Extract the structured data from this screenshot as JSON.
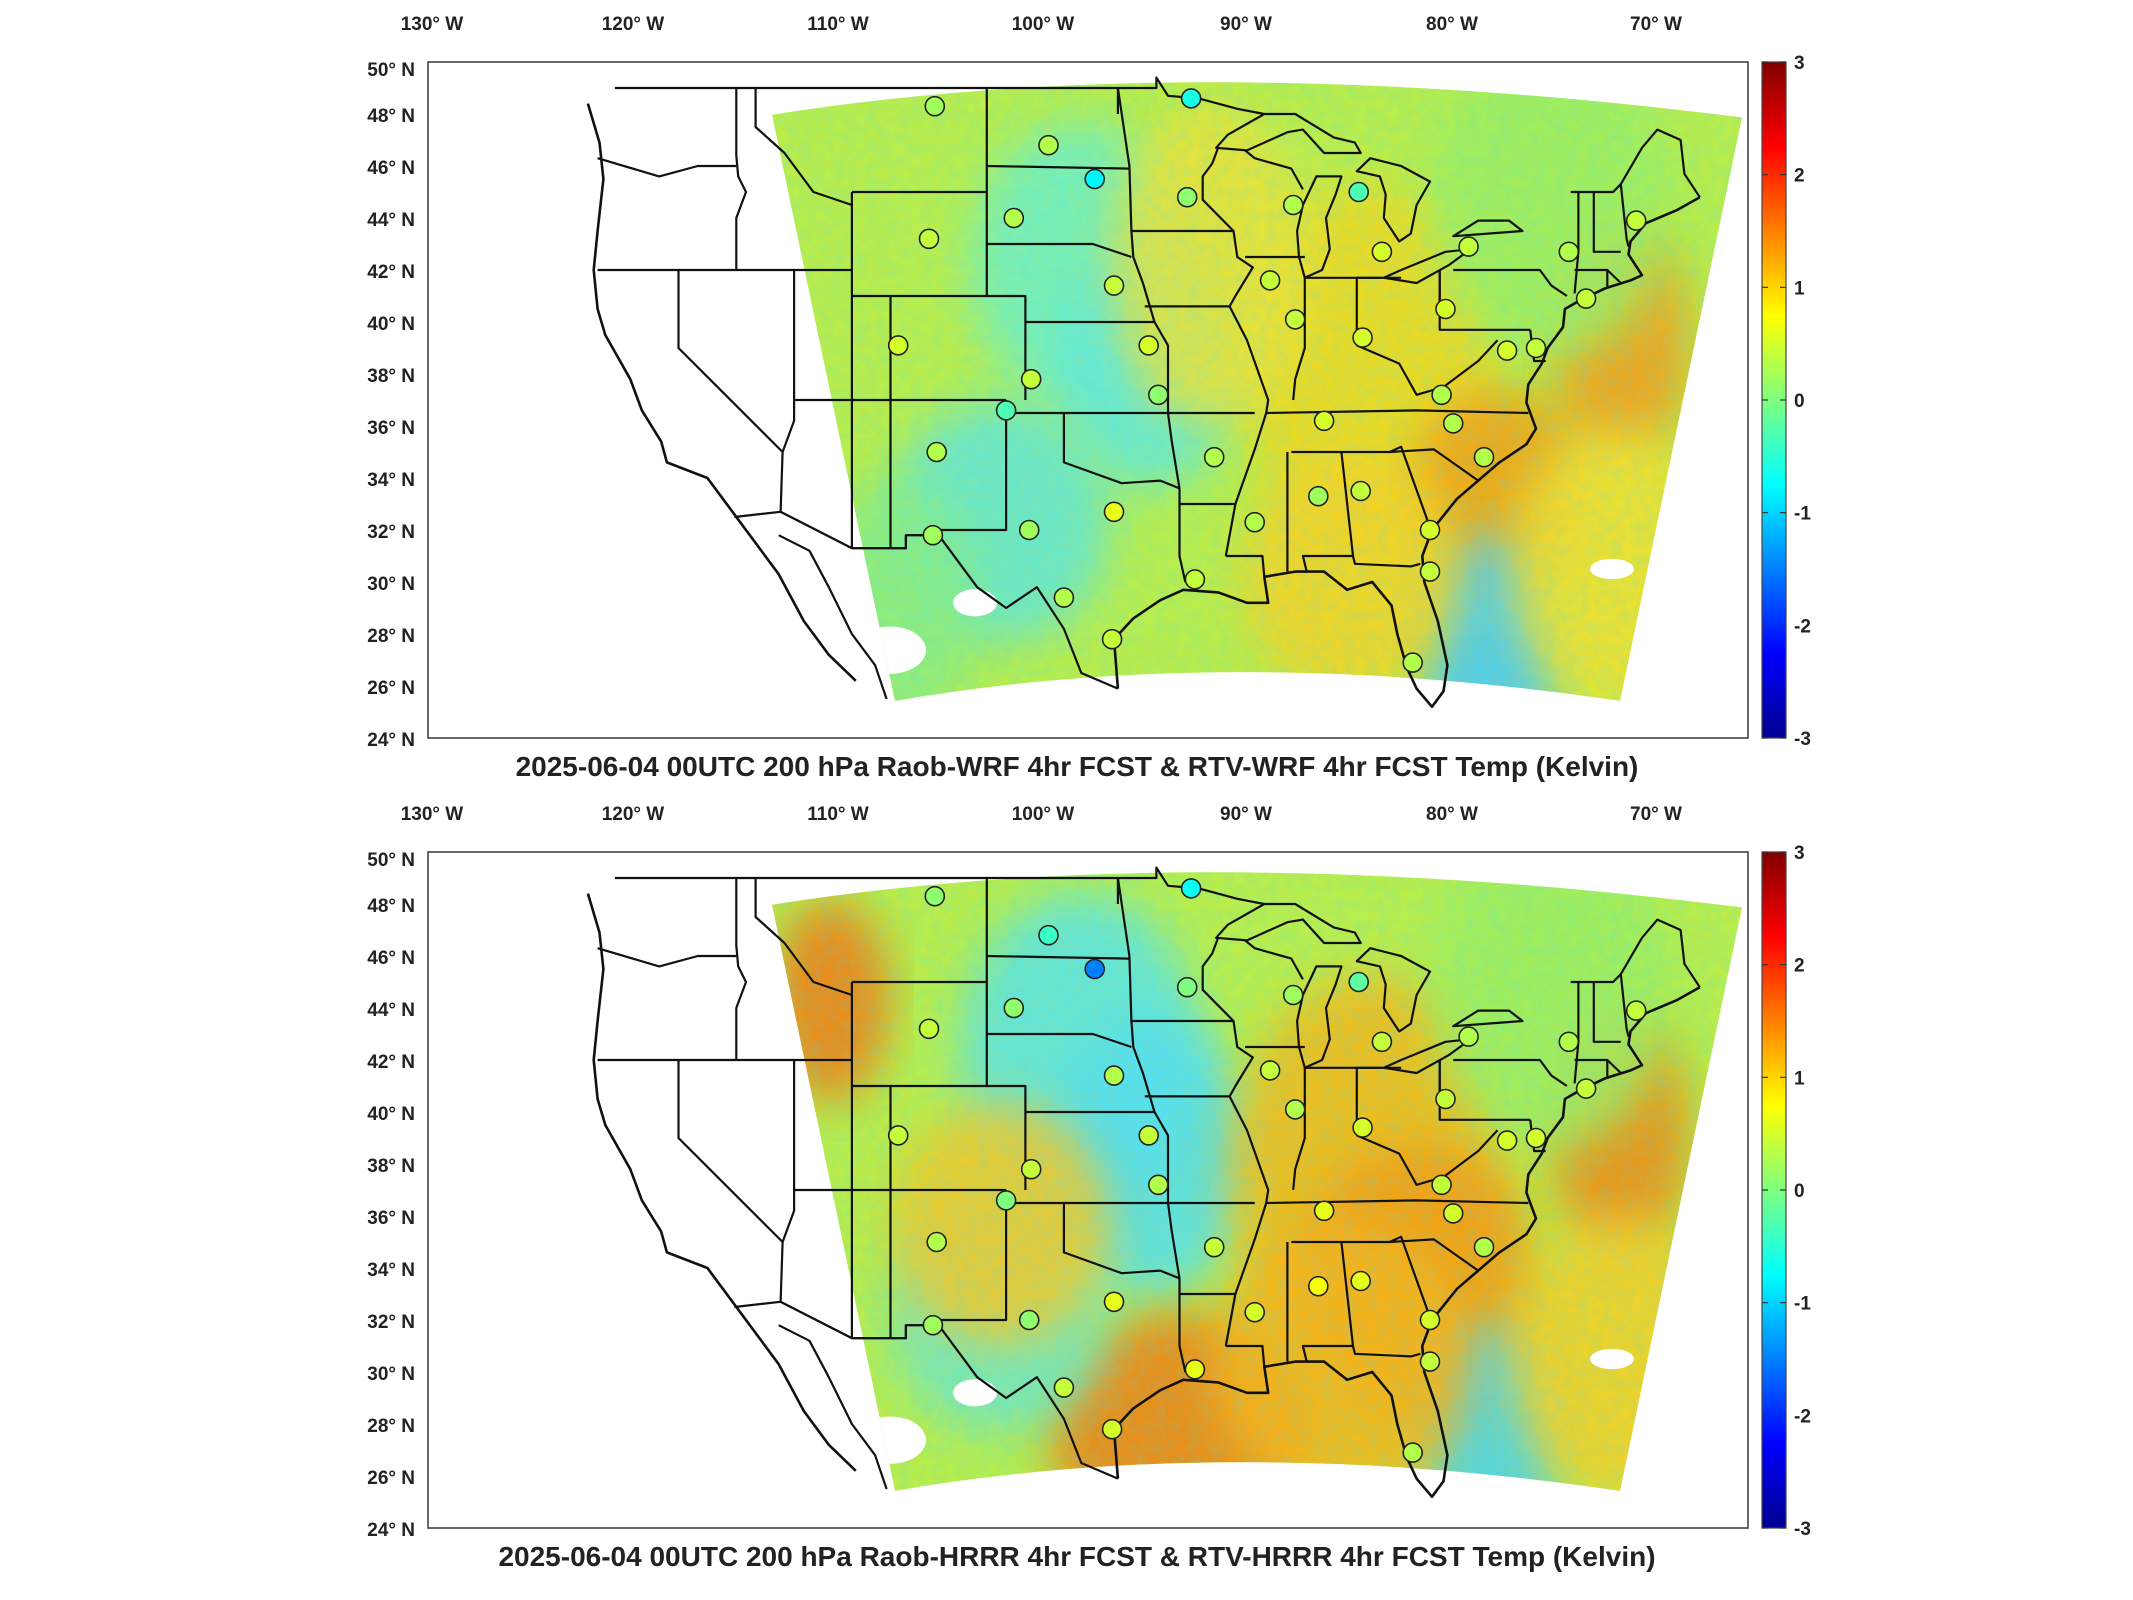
{
  "panels": [
    {
      "title": "2025-06-04 00UTC 200 hPa Raob-WRF 4hr FCST & RTV-WRF 4hr FCST Temp (Kelvin)",
      "stations": [
        {
          "lon": -106.7,
          "lat": 48.3,
          "v": 0.2
        },
        {
          "lon": -100.8,
          "lat": 46.8,
          "v": 0.3
        },
        {
          "lon": -98.4,
          "lat": 45.5,
          "v": -0.8
        },
        {
          "lon": -93.4,
          "lat": 48.6,
          "v": -0.6
        },
        {
          "lon": -93.6,
          "lat": 44.8,
          "v": 0.1
        },
        {
          "lon": -88.1,
          "lat": 44.5,
          "v": 0.3
        },
        {
          "lon": -84.7,
          "lat": 45.0,
          "v": -0.3
        },
        {
          "lon": -83.5,
          "lat": 42.7,
          "v": 0.5
        },
        {
          "lon": -79.0,
          "lat": 42.9,
          "v": 0.4
        },
        {
          "lon": -73.8,
          "lat": 42.7,
          "v": 0.3
        },
        {
          "lon": -70.3,
          "lat": 43.9,
          "v": 0.4
        },
        {
          "lon": -102.6,
          "lat": 44.0,
          "v": 0.3
        },
        {
          "lon": -107.0,
          "lat": 43.2,
          "v": 0.4
        },
        {
          "lon": -108.6,
          "lat": 39.1,
          "v": 0.5
        },
        {
          "lon": -106.6,
          "lat": 35.0,
          "v": 0.3
        },
        {
          "lon": -103.0,
          "lat": 36.6,
          "v": -0.3
        },
        {
          "lon": -101.7,
          "lat": 37.8,
          "v": 0.4
        },
        {
          "lon": -97.4,
          "lat": 41.4,
          "v": 0.4
        },
        {
          "lon": -95.6,
          "lat": 39.1,
          "v": 0.5
        },
        {
          "lon": -89.3,
          "lat": 41.6,
          "v": 0.4
        },
        {
          "lon": -88.0,
          "lat": 40.1,
          "v": 0.4
        },
        {
          "lon": -97.4,
          "lat": 32.7,
          "v": 0.6
        },
        {
          "lon": -101.8,
          "lat": 32.0,
          "v": 0.2
        },
        {
          "lon": -106.8,
          "lat": 31.8,
          "v": 0.2
        },
        {
          "lon": -100.0,
          "lat": 29.4,
          "v": 0.3
        },
        {
          "lon": -97.5,
          "lat": 27.8,
          "v": 0.4
        },
        {
          "lon": -93.2,
          "lat": 30.1,
          "v": 0.4
        },
        {
          "lon": -92.2,
          "lat": 34.8,
          "v": 0.3
        },
        {
          "lon": -95.1,
          "lat": 37.2,
          "v": 0.1
        },
        {
          "lon": -90.1,
          "lat": 32.3,
          "v": 0.3
        },
        {
          "lon": -86.8,
          "lat": 33.3,
          "v": 0.2
        },
        {
          "lon": -84.6,
          "lat": 33.5,
          "v": 0.4
        },
        {
          "lon": -86.5,
          "lat": 36.2,
          "v": 0.5
        },
        {
          "lon": -81.0,
          "lat": 32.0,
          "v": 0.5
        },
        {
          "lon": -78.2,
          "lat": 34.8,
          "v": 0.3
        },
        {
          "lon": -80.4,
          "lat": 37.2,
          "v": 0.3
        },
        {
          "lon": -80.2,
          "lat": 40.5,
          "v": 0.5
        },
        {
          "lon": -84.5,
          "lat": 39.4,
          "v": 0.5
        },
        {
          "lon": -81.0,
          "lat": 30.4,
          "v": 0.4
        },
        {
          "lon": -81.9,
          "lat": 26.9,
          "v": 0.3
        },
        {
          "lon": -77.0,
          "lat": 38.9,
          "v": 0.5
        },
        {
          "lon": -72.9,
          "lat": 40.9,
          "v": 0.4
        },
        {
          "lon": -75.5,
          "lat": 39.0,
          "v": 0.4
        },
        {
          "lon": -79.8,
          "lat": 36.1,
          "v": 0.3
        }
      ]
    },
    {
      "title": "2025-06-04 00UTC 200 hPa Raob-HRRR 4hr FCST & RTV-HRRR 4hr FCST Temp (Kelvin)",
      "stations": [
        {
          "lon": -106.7,
          "lat": 48.3,
          "v": 0.1
        },
        {
          "lon": -100.8,
          "lat": 46.8,
          "v": -0.4
        },
        {
          "lon": -98.4,
          "lat": 45.5,
          "v": -1.5
        },
        {
          "lon": -93.4,
          "lat": 48.6,
          "v": -0.7
        },
        {
          "lon": -93.6,
          "lat": 44.8,
          "v": 0.0
        },
        {
          "lon": -88.1,
          "lat": 44.5,
          "v": 0.2
        },
        {
          "lon": -84.7,
          "lat": 45.0,
          "v": -0.2
        },
        {
          "lon": -83.5,
          "lat": 42.7,
          "v": 0.4
        },
        {
          "lon": -79.0,
          "lat": 42.9,
          "v": 0.3
        },
        {
          "lon": -73.8,
          "lat": 42.7,
          "v": 0.3
        },
        {
          "lon": -70.3,
          "lat": 43.9,
          "v": 0.4
        },
        {
          "lon": -102.6,
          "lat": 44.0,
          "v": 0.1
        },
        {
          "lon": -107.0,
          "lat": 43.2,
          "v": 0.4
        },
        {
          "lon": -108.6,
          "lat": 39.1,
          "v": 0.4
        },
        {
          "lon": -106.6,
          "lat": 35.0,
          "v": 0.3
        },
        {
          "lon": -103.0,
          "lat": 36.6,
          "v": 0.0
        },
        {
          "lon": -101.7,
          "lat": 37.8,
          "v": 0.4
        },
        {
          "lon": -97.4,
          "lat": 41.4,
          "v": 0.3
        },
        {
          "lon": -95.6,
          "lat": 39.1,
          "v": 0.4
        },
        {
          "lon": -89.3,
          "lat": 41.6,
          "v": 0.4
        },
        {
          "lon": -88.0,
          "lat": 40.1,
          "v": 0.3
        },
        {
          "lon": -97.4,
          "lat": 32.7,
          "v": 0.6
        },
        {
          "lon": -101.8,
          "lat": 32.0,
          "v": 0.1
        },
        {
          "lon": -106.8,
          "lat": 31.8,
          "v": 0.2
        },
        {
          "lon": -100.0,
          "lat": 29.4,
          "v": 0.4
        },
        {
          "lon": -97.5,
          "lat": 27.8,
          "v": 0.5
        },
        {
          "lon": -93.2,
          "lat": 30.1,
          "v": 0.6
        },
        {
          "lon": -92.2,
          "lat": 34.8,
          "v": 0.4
        },
        {
          "lon": -95.1,
          "lat": 37.2,
          "v": 0.3
        },
        {
          "lon": -90.1,
          "lat": 32.3,
          "v": 0.5
        },
        {
          "lon": -86.8,
          "lat": 33.3,
          "v": 0.7
        },
        {
          "lon": -84.6,
          "lat": 33.5,
          "v": 0.6
        },
        {
          "lon": -86.5,
          "lat": 36.2,
          "v": 0.6
        },
        {
          "lon": -81.0,
          "lat": 32.0,
          "v": 0.5
        },
        {
          "lon": -78.2,
          "lat": 34.8,
          "v": 0.3
        },
        {
          "lon": -80.4,
          "lat": 37.2,
          "v": 0.4
        },
        {
          "lon": -80.2,
          "lat": 40.5,
          "v": 0.4
        },
        {
          "lon": -84.5,
          "lat": 39.4,
          "v": 0.5
        },
        {
          "lon": -81.0,
          "lat": 30.4,
          "v": 0.4
        },
        {
          "lon": -81.9,
          "lat": 26.9,
          "v": 0.3
        },
        {
          "lon": -77.0,
          "lat": 38.9,
          "v": 0.5
        },
        {
          "lon": -72.9,
          "lat": 40.9,
          "v": 0.4
        },
        {
          "lon": -75.5,
          "lat": 39.0,
          "v": 0.5
        },
        {
          "lon": -79.8,
          "lat": 36.1,
          "v": 0.5
        }
      ]
    }
  ],
  "lon_ticks": [
    "130° W",
    "120° W",
    "110° W",
    "100° W",
    "90° W",
    "80° W",
    "70° W"
  ],
  "lat_ticks": [
    "50° N",
    "48° N",
    "46° N",
    "44° N",
    "42° N",
    "40° N",
    "38° N",
    "36° N",
    "34° N",
    "32° N",
    "30° N",
    "28° N",
    "26° N",
    "24° N"
  ],
  "colorbar": {
    "ticks": [
      "3",
      "2",
      "1",
      "0",
      "-1",
      "-2",
      "-3"
    ],
    "range": [
      -3,
      3
    ],
    "colormap": "jet"
  },
  "colors": {
    "border": "#111111",
    "frame": "#444444",
    "text": "#222222"
  }
}
